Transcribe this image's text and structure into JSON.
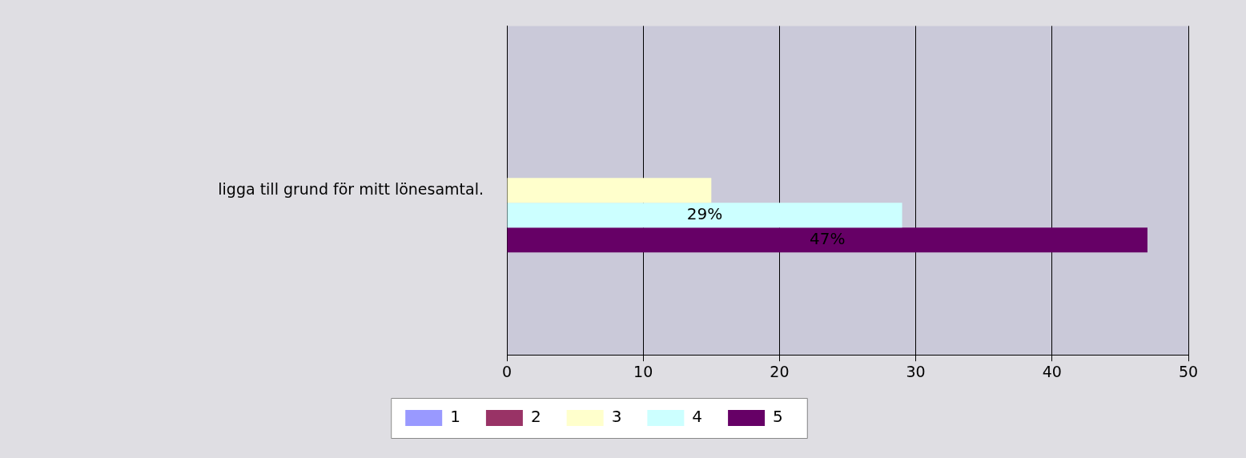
{
  "chart_data": {
    "type": "bar",
    "orientation": "horizontal",
    "categories": [
      "ligga till grund för mitt lönesamtal."
    ],
    "series": [
      {
        "name": "1",
        "color": "#9999ff",
        "values": [
          null
        ]
      },
      {
        "name": "2",
        "color": "#993366",
        "values": [
          null
        ]
      },
      {
        "name": "3",
        "color": "#ffffcc",
        "values": [
          15
        ],
        "value_labels": [
          null
        ]
      },
      {
        "name": "4",
        "color": "#ccffff",
        "values": [
          29
        ],
        "value_labels": [
          "29%"
        ]
      },
      {
        "name": "5",
        "color": "#660066",
        "values": [
          47
        ],
        "value_labels": [
          "47%"
        ]
      }
    ],
    "xlim": [
      0,
      50
    ],
    "xticks": [
      0,
      10,
      20,
      30,
      40,
      50
    ],
    "grid": "x",
    "legend": "bottom"
  }
}
